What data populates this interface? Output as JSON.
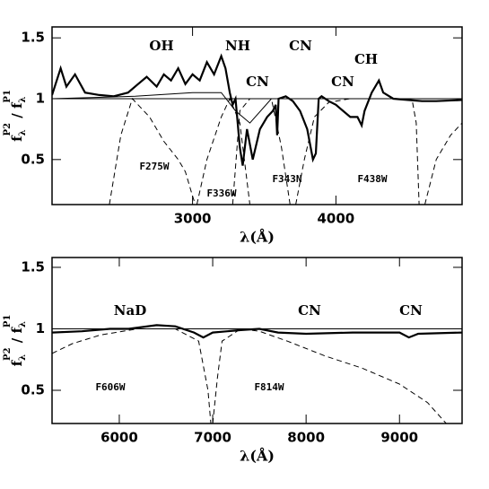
{
  "chart_data": [
    {
      "type": "line",
      "xlabel": "λ(Å)",
      "ylabel": [
        "f",
        "λ",
        "P2",
        " / f",
        "λ",
        "P1"
      ],
      "xlim": [
        2020,
        4880
      ],
      "ylim": [
        0.13,
        1.59
      ],
      "xticks": [
        3000,
        4000
      ],
      "yticks": [
        0.5,
        1,
        1.5
      ],
      "annotations": [
        "OH",
        "NH",
        "CN",
        "CN",
        "CN",
        "CH"
      ],
      "series": [
        {
          "color": "#000",
          "width": 2.2,
          "x": [
            2020,
            2080,
            2120,
            2180,
            2250,
            2350,
            2450,
            2550,
            2620,
            2680,
            2750,
            2800,
            2850,
            2900,
            2950,
            3000,
            3050,
            3100,
            3150,
            3200,
            3230,
            3260,
            3280,
            3300,
            3330,
            3350,
            3380,
            3420,
            3470,
            3520,
            3560,
            3580,
            3590,
            3600,
            3650,
            3700,
            3750,
            3800,
            3840,
            3860,
            3880,
            3900,
            3950,
            4000,
            4050,
            4100,
            4150,
            4180,
            4200,
            4250,
            4300,
            4330,
            4400,
            4500,
            4600,
            4700,
            4880
          ],
          "values": [
            1.03,
            1.25,
            1.1,
            1.2,
            1.05,
            1.03,
            1.02,
            1.05,
            1.12,
            1.18,
            1.1,
            1.2,
            1.15,
            1.25,
            1.12,
            1.2,
            1.15,
            1.3,
            1.2,
            1.35,
            1.25,
            1.05,
            0.95,
            1.0,
            0.6,
            0.45,
            0.75,
            0.5,
            0.75,
            0.85,
            0.9,
            0.95,
            0.7,
            1.0,
            1.02,
            0.98,
            0.9,
            0.75,
            0.5,
            0.55,
            1.0,
            1.02,
            0.98,
            0.95,
            0.9,
            0.85,
            0.85,
            0.78,
            0.9,
            1.05,
            1.15,
            1.05,
            1.0,
            0.99,
            0.98,
            0.98,
            0.99
          ]
        },
        {
          "color": "#000",
          "width": 1,
          "x": [
            2020,
            2600,
            3000,
            3200,
            3300,
            3400,
            3550,
            4880
          ],
          "values": [
            1.0,
            1.02,
            1.05,
            1.05,
            0.9,
            0.8,
            1.0,
            1.0
          ]
        },
        {
          "color": "#000",
          "width": 1,
          "x": [
            2020,
            4880
          ],
          "values": [
            1,
            1
          ]
        },
        {
          "name": "F275W",
          "color": "#000",
          "width": 1,
          "dash": true,
          "x": [
            2420,
            2500,
            2580,
            2700,
            2800,
            2900,
            2950,
            3000,
            3020
          ],
          "values": [
            0.13,
            0.7,
            1.0,
            0.85,
            0.65,
            0.5,
            0.4,
            0.2,
            0.13
          ]
        },
        {
          "name": "F336W",
          "color": "#000",
          "width": 1,
          "dash": true,
          "x": [
            3030,
            3100,
            3200,
            3260,
            3330,
            3400
          ],
          "values": [
            0.13,
            0.5,
            0.85,
            1.0,
            0.8,
            0.13
          ]
        },
        {
          "name": "F343N",
          "color": "#000",
          "width": 1,
          "dash": true,
          "x": [
            3280,
            3330,
            3400,
            3550,
            3620,
            3680
          ],
          "values": [
            0.13,
            0.9,
            1.0,
            1.0,
            0.6,
            0.13
          ]
        },
        {
          "name": "F438W",
          "color": "#000",
          "width": 1,
          "dash": true,
          "x": [
            3720,
            3780,
            3850,
            3950,
            4100,
            4400,
            4530,
            4560,
            4580
          ],
          "values": [
            0.13,
            0.5,
            0.85,
            0.97,
            1.0,
            1.0,
            1.0,
            0.8,
            0.13
          ]
        },
        {
          "color": "#000",
          "width": 1,
          "dash": true,
          "x": [
            4620,
            4700,
            4800,
            4880
          ],
          "values": [
            0.13,
            0.5,
            0.7,
            0.8
          ]
        }
      ]
    },
    {
      "type": "line",
      "xlabel": "λ(Å)",
      "ylabel": [
        "f",
        "λ",
        "P2",
        " / f",
        "λ",
        "P1"
      ],
      "xlim": [
        5280,
        9670
      ],
      "ylim": [
        0.23,
        1.58
      ],
      "xticks": [
        6000,
        7000,
        8000,
        9000
      ],
      "yticks": [
        0.5,
        1,
        1.5
      ],
      "annotations": [
        "NaD",
        "CN",
        "CN"
      ],
      "series": [
        {
          "color": "#000",
          "width": 2.2,
          "x": [
            5280,
            5600,
            5900,
            6100,
            6400,
            6600,
            6800,
            6900,
            7000,
            7300,
            7500,
            7700,
            8000,
            8500,
            9000,
            9100,
            9200,
            9670
          ],
          "values": [
            0.97,
            0.98,
            1.0,
            1.0,
            1.03,
            1.02,
            0.97,
            0.93,
            0.97,
            0.99,
            1.0,
            0.97,
            0.96,
            0.97,
            0.97,
            0.93,
            0.96,
            0.97
          ]
        },
        {
          "color": "#000",
          "width": 1,
          "x": [
            5280,
            9670
          ],
          "values": [
            1,
            1
          ]
        },
        {
          "name": "F606W",
          "color": "#000",
          "width": 1,
          "dash": true,
          "x": [
            5280,
            5500,
            5800,
            6200,
            6600,
            6850,
            6950,
            6980
          ],
          "values": [
            0.8,
            0.88,
            0.95,
            1.0,
            1.0,
            0.9,
            0.5,
            0.23
          ]
        },
        {
          "name": "F814W",
          "color": "#000",
          "width": 1,
          "dash": true,
          "x": [
            7000,
            7050,
            7100,
            7300,
            7500,
            7800,
            8200,
            8600,
            9000,
            9300,
            9500
          ],
          "values": [
            0.23,
            0.6,
            0.9,
            1.0,
            0.98,
            0.9,
            0.78,
            0.68,
            0.55,
            0.4,
            0.23
          ]
        }
      ]
    }
  ]
}
